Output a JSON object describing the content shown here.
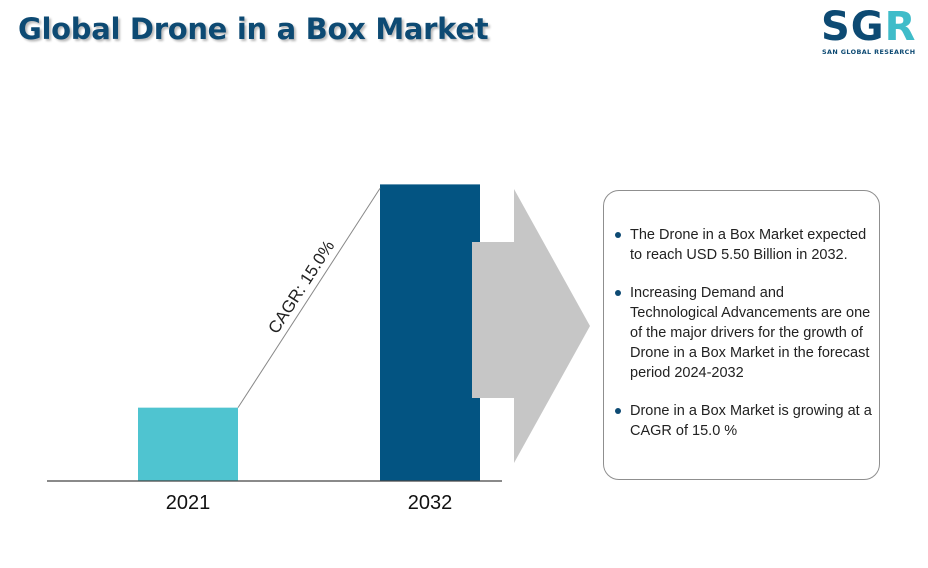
{
  "title": "Global Drone in a Box Market",
  "logo": {
    "letters": "SG",
    "accent_letter": "R",
    "subtitle": "SAN GLOBAL RESEARCH"
  },
  "chart_data": {
    "type": "bar",
    "categories": [
      "2021",
      "2032"
    ],
    "values": [
      1.36,
      5.5
    ],
    "unit": "USD Billion",
    "ylim": [
      0,
      5.6
    ],
    "grid": false,
    "legend": "none",
    "colors": [
      "#4fc4d0",
      "#035482"
    ],
    "annotation": "CAGR: 15.0%"
  },
  "info": {
    "points": [
      "The Drone in a Box Market expected to reach USD 5.50 Billion in 2032.",
      "Increasing Demand and Technological Advancements are one of the major drivers for the growth of Drone in a Box Market in the forecast period 2024-2032",
      "Drone in a Box Market is growing at a CAGR of 15.0 %"
    ]
  },
  "colors": {
    "title": "#0d4a73",
    "arrow": "#c6c6c6",
    "accent": "#3fbcc9"
  }
}
